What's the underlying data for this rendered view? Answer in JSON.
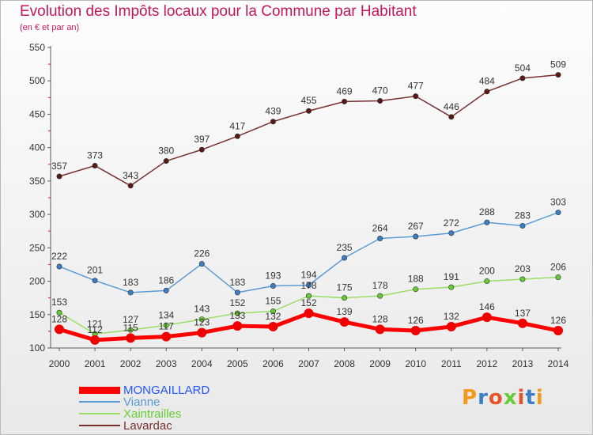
{
  "header": {
    "title": "Evolution des Impôts locaux pour la Commune par Habitant",
    "subtitle": "(en € et par an)"
  },
  "logo": {
    "text": "Proxiti"
  },
  "colors": {
    "title": "#c2185b",
    "axis": "#5b5b5b",
    "grid": "#c2185b"
  },
  "chart_data": {
    "type": "line",
    "x": [
      2000,
      2001,
      2002,
      2003,
      2004,
      2005,
      2006,
      2007,
      2008,
      2009,
      2010,
      2011,
      2012,
      2013,
      2014
    ],
    "ylim": [
      100,
      550
    ],
    "yticks": [
      100,
      150,
      200,
      250,
      300,
      350,
      400,
      450,
      500,
      550
    ],
    "grid": false,
    "legend_position": "bottom-left",
    "series": [
      {
        "name": "MONGAILLARD",
        "color": "#ff0000",
        "legend_color": "#2255ff",
        "marker": "#ee0000",
        "width": 5,
        "values": [
          128,
          112,
          115,
          117,
          123,
          133,
          132,
          152,
          139,
          128,
          126,
          132,
          146,
          137,
          126
        ]
      },
      {
        "name": "Vianne",
        "color": "#5b9bd5",
        "legend_color": "#5b9bd5",
        "marker": "#3a7ec4",
        "width": 1.5,
        "values": [
          222,
          201,
          183,
          186,
          226,
          183,
          193,
          194,
          235,
          264,
          267,
          272,
          288,
          283,
          303
        ]
      },
      {
        "name": "Xaintrailles",
        "color": "#99dd66",
        "legend_color": "#66cc33",
        "marker": "#66cc33",
        "width": 1.5,
        "values": [
          153,
          121,
          127,
          134,
          143,
          152,
          155,
          178,
          175,
          178,
          188,
          191,
          200,
          203,
          206
        ]
      },
      {
        "name": "Lavardac",
        "color": "#7a2e2e",
        "legend_color": "#7a2e2e",
        "marker": "#5a1818",
        "width": 1.5,
        "values": [
          357,
          373,
          343,
          380,
          397,
          417,
          439,
          455,
          469,
          470,
          477,
          446,
          484,
          504,
          509
        ]
      }
    ]
  }
}
